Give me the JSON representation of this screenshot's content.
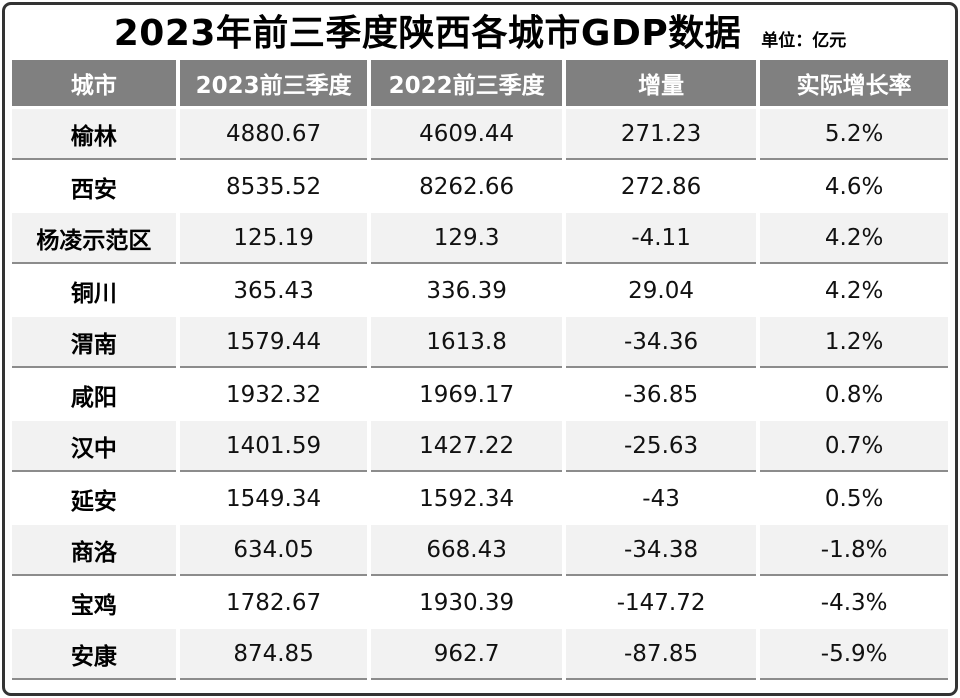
{
  "header": {
    "title": "2023年前三季度陕西各城市GDP数据",
    "unit_label": "单位：亿元"
  },
  "chart_data": {
    "type": "table",
    "title": "2023年前三季度陕西各城市GDP数据",
    "unit": "亿元",
    "columns": [
      "城市",
      "2023前三季度",
      "2022前三季度",
      "增量",
      "实际增长率"
    ],
    "rows": [
      {
        "city": "榆林",
        "y2023": "4880.67",
        "y2022": "4609.44",
        "delta": "271.23",
        "rate": "5.2%"
      },
      {
        "city": "西安",
        "y2023": "8535.52",
        "y2022": "8262.66",
        "delta": "272.86",
        "rate": "4.6%"
      },
      {
        "city": "杨凌示范区",
        "y2023": "125.19",
        "y2022": "129.3",
        "delta": "-4.11",
        "rate": "4.2%"
      },
      {
        "city": "铜川",
        "y2023": "365.43",
        "y2022": "336.39",
        "delta": "29.04",
        "rate": "4.2%"
      },
      {
        "city": "渭南",
        "y2023": "1579.44",
        "y2022": "1613.8",
        "delta": "-34.36",
        "rate": "1.2%"
      },
      {
        "city": "咸阳",
        "y2023": "1932.32",
        "y2022": "1969.17",
        "delta": "-36.85",
        "rate": "0.8%"
      },
      {
        "city": "汉中",
        "y2023": "1401.59",
        "y2022": "1427.22",
        "delta": "-25.63",
        "rate": "0.7%"
      },
      {
        "city": "延安",
        "y2023": "1549.34",
        "y2022": "1592.34",
        "delta": "-43",
        "rate": "0.5%"
      },
      {
        "city": "商洛",
        "y2023": "634.05",
        "y2022": "668.43",
        "delta": "-34.38",
        "rate": "-1.8%"
      },
      {
        "city": "宝鸡",
        "y2023": "1782.67",
        "y2022": "1930.39",
        "delta": "-147.72",
        "rate": "-4.3%"
      },
      {
        "city": "安康",
        "y2023": "874.85",
        "y2022": "962.7",
        "delta": "-87.85",
        "rate": "-5.9%"
      }
    ]
  },
  "colors": {
    "header_bg": "#808080",
    "header_text": "#ffffff",
    "alt_row_bg": "#f2f2f2",
    "row_separator": "#8c8c8c",
    "frame_border": "#333333",
    "body_text": "#111111"
  }
}
